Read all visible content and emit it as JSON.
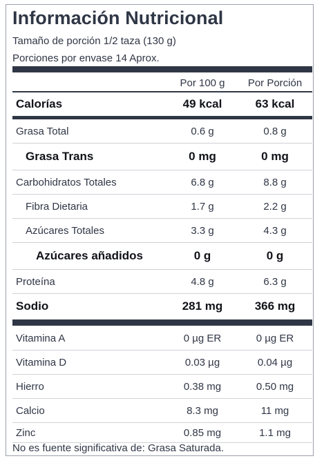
{
  "title": "Información Nutricional",
  "serving_size": "Tamaño de porción 1/2 taza (130 g)",
  "servings_per_container": "Porciones por envase 14 Aprox.",
  "columns": [
    "Por 100 g",
    "Por Porción"
  ],
  "calories": {
    "label": "Calorías",
    "per100": "49 kcal",
    "perServing": "63 kcal"
  },
  "nutrients": [
    {
      "label": "Grasa Total",
      "per100": "0.6 g",
      "perServing": "0.8 g"
    },
    {
      "label": "Grasa Trans",
      "per100": "0 mg",
      "perServing": "0 mg"
    },
    {
      "label": "Carbohidratos Totales",
      "per100": "6.8 g",
      "perServing": "8.8 g"
    },
    {
      "label": "Fibra Dietaria",
      "per100": "1.7 g",
      "perServing": "2.2 g"
    },
    {
      "label": "Azúcares Totales",
      "per100": "3.3 g",
      "perServing": "4.3 g"
    },
    {
      "label": "Azúcares añadidos",
      "per100": "0 g",
      "perServing": "0 g"
    },
    {
      "label": "Proteína",
      "per100": "4.8 g",
      "perServing": "6.3 g"
    },
    {
      "label": "Sodio",
      "per100": "281 mg",
      "perServing": "366 mg"
    }
  ],
  "vitamins": [
    {
      "label": "Vitamina A",
      "per100": "0 µg ER",
      "perServing": "0 µg ER"
    },
    {
      "label": "Vitamina D",
      "per100": "0.03 µg",
      "perServing": "0.04 µg"
    },
    {
      "label": "Hierro",
      "per100": "0.38 mg",
      "perServing": "0.50 mg"
    },
    {
      "label": "Calcio",
      "per100": "8.3 mg",
      "perServing": "11 mg"
    },
    {
      "label": "Zinc",
      "per100": "0.85 mg",
      "perServing": "1.1 mg"
    }
  ],
  "footnote": "No es fuente significativa de: Grasa Saturada."
}
